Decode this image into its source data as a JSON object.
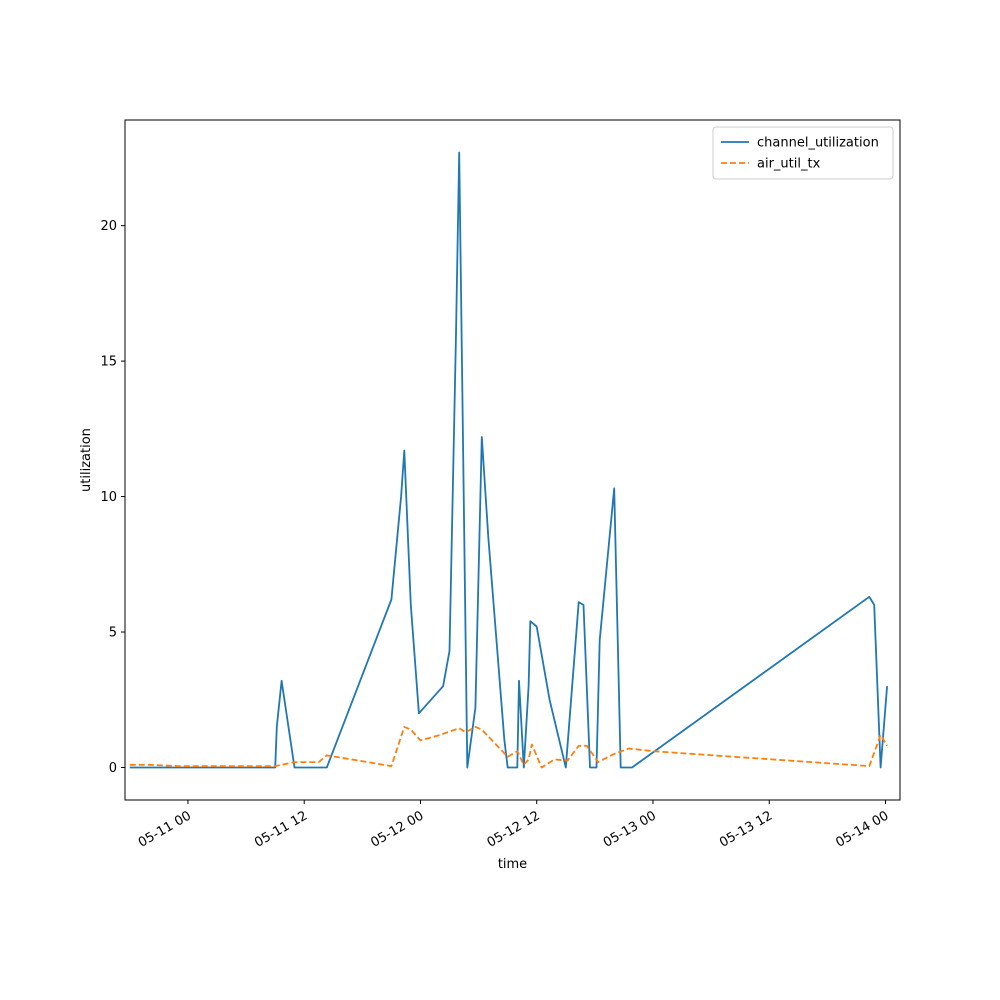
{
  "chart_data": {
    "type": "line",
    "title": "",
    "xlabel": "time",
    "ylabel": "utilization",
    "x_tick_labels": [
      "05-11 00",
      "05-11 12",
      "05-12 00",
      "05-12 12",
      "05-13 00",
      "05-13 12",
      "05-14 00"
    ],
    "y_tick_labels": [
      "0",
      "5",
      "10",
      "15",
      "20"
    ],
    "xlim": [
      "2024-05-10 17:30",
      "2024-05-14 01:30"
    ],
    "ylim": [
      -1.2,
      23.9
    ],
    "x_tick_values": [
      "2024-05-11 00:00",
      "2024-05-11 12:00",
      "2024-05-12 00:00",
      "2024-05-12 12:00",
      "2024-05-13 00:00",
      "2024-05-13 12:00",
      "2024-05-14 00:00"
    ],
    "y_tick_values": [
      0,
      5,
      10,
      15,
      20
    ],
    "grid": false,
    "legend_position": "top-right",
    "series": [
      {
        "name": "channel_utilization",
        "color": "#1f77b4",
        "style": "solid",
        "points": [
          [
            "2024-05-10 18:00",
            0.0
          ],
          [
            "2024-05-11 09:00",
            0.0
          ],
          [
            "2024-05-11 09:10",
            1.5
          ],
          [
            "2024-05-11 09:40",
            3.2
          ],
          [
            "2024-05-11 11:00",
            0.0
          ],
          [
            "2024-05-11 14:20",
            0.0
          ],
          [
            "2024-05-11 21:00",
            6.2
          ],
          [
            "2024-05-11 22:00",
            10.0
          ],
          [
            "2024-05-11 22:20",
            11.7
          ],
          [
            "2024-05-11 23:00",
            6.0
          ],
          [
            "2024-05-11 23:50",
            2.0
          ],
          [
            "2024-05-12 02:20",
            3.0
          ],
          [
            "2024-05-12 03:00",
            4.3
          ],
          [
            "2024-05-12 03:40",
            16.0
          ],
          [
            "2024-05-12 04:00",
            22.7
          ],
          [
            "2024-05-12 04:50",
            0.0
          ],
          [
            "2024-05-12 05:40",
            2.2
          ],
          [
            "2024-05-12 06:20",
            12.2
          ],
          [
            "2024-05-12 07:00",
            8.5
          ],
          [
            "2024-05-12 08:40",
            1.0
          ],
          [
            "2024-05-12 09:00",
            0.0
          ],
          [
            "2024-05-12 10:00",
            0.0
          ],
          [
            "2024-05-12 10:10",
            3.2
          ],
          [
            "2024-05-12 10:40",
            0.0
          ],
          [
            "2024-05-12 11:10",
            3.0
          ],
          [
            "2024-05-12 11:20",
            5.4
          ],
          [
            "2024-05-12 12:00",
            5.2
          ],
          [
            "2024-05-12 13:20",
            2.5
          ],
          [
            "2024-05-12 15:00",
            0.0
          ],
          [
            "2024-05-12 16:20",
            6.1
          ],
          [
            "2024-05-12 16:50",
            6.0
          ],
          [
            "2024-05-12 17:30",
            0.0
          ],
          [
            "2024-05-12 18:10",
            0.0
          ],
          [
            "2024-05-12 18:30",
            4.7
          ],
          [
            "2024-05-12 20:00",
            10.3
          ],
          [
            "2024-05-12 20:40",
            0.0
          ],
          [
            "2024-05-12 21:50",
            0.0
          ],
          [
            "2024-05-13 22:20",
            6.3
          ],
          [
            "2024-05-13 22:50",
            6.0
          ],
          [
            "2024-05-13 23:30",
            0.0
          ],
          [
            "2024-05-14 00:10",
            3.0
          ]
        ]
      },
      {
        "name": "air_util_tx",
        "color": "#ff7f0e",
        "style": "dashed",
        "points": [
          [
            "2024-05-10 18:00",
            0.1
          ],
          [
            "2024-05-10 20:00",
            0.1
          ],
          [
            "2024-05-10 23:00",
            0.05
          ],
          [
            "2024-05-11 06:00",
            0.05
          ],
          [
            "2024-05-11 09:00",
            0.05
          ],
          [
            "2024-05-11 11:00",
            0.2
          ],
          [
            "2024-05-11 13:30",
            0.2
          ],
          [
            "2024-05-11 14:20",
            0.45
          ],
          [
            "2024-05-11 21:00",
            0.05
          ],
          [
            "2024-05-11 22:20",
            1.5
          ],
          [
            "2024-05-11 23:00",
            1.4
          ],
          [
            "2024-05-12 00:00",
            1.0
          ],
          [
            "2024-05-12 02:00",
            1.2
          ],
          [
            "2024-05-12 04:00",
            1.45
          ],
          [
            "2024-05-12 04:40",
            1.3
          ],
          [
            "2024-05-12 05:40",
            1.5
          ],
          [
            "2024-05-12 06:20",
            1.4
          ],
          [
            "2024-05-12 09:00",
            0.4
          ],
          [
            "2024-05-12 10:00",
            0.6
          ],
          [
            "2024-05-12 10:40",
            0.1
          ],
          [
            "2024-05-12 11:10",
            0.3
          ],
          [
            "2024-05-12 11:30",
            0.85
          ],
          [
            "2024-05-12 12:30",
            0.0
          ],
          [
            "2024-05-12 13:50",
            0.3
          ],
          [
            "2024-05-12 15:10",
            0.25
          ],
          [
            "2024-05-12 16:20",
            0.8
          ],
          [
            "2024-05-12 17:10",
            0.8
          ],
          [
            "2024-05-12 18:20",
            0.2
          ],
          [
            "2024-05-12 20:00",
            0.5
          ],
          [
            "2024-05-12 21:30",
            0.7
          ],
          [
            "2024-05-13 00:00",
            0.6
          ],
          [
            "2024-05-13 22:20",
            0.05
          ],
          [
            "2024-05-13 23:30",
            1.2
          ],
          [
            "2024-05-14 00:10",
            0.8
          ]
        ]
      }
    ]
  }
}
